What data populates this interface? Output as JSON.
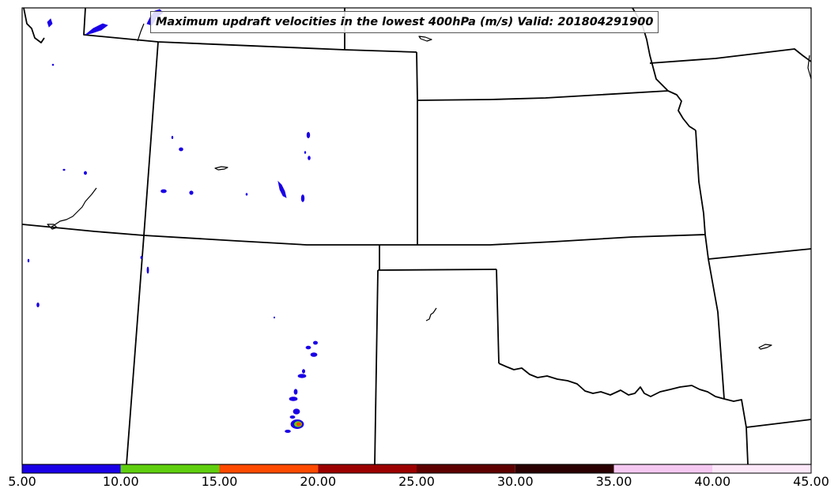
{
  "title": "Maximum updraft velocities in the lowest 400hPa (m/s) Valid: 201804291900",
  "colorbar": {
    "bins": [
      {
        "from": 5,
        "to": 10,
        "color": "#1a00e6"
      },
      {
        "from": 10,
        "to": 15,
        "color": "#5fcf0f"
      },
      {
        "from": 15,
        "to": 20,
        "color": "#ff4a00"
      },
      {
        "from": 20,
        "to": 25,
        "color": "#9c0000"
      },
      {
        "from": 25,
        "to": 30,
        "color": "#5e0000"
      },
      {
        "from": 30,
        "to": 35,
        "color": "#2a0000"
      },
      {
        "from": 35,
        "to": 40,
        "color": "#f5c8f2"
      },
      {
        "from": 40,
        "to": 45,
        "color": "#fde8fa"
      }
    ],
    "tick_labels": [
      "5.00",
      "10.00",
      "15.00",
      "20.00",
      "25.00",
      "30.00",
      "35.00",
      "40.00",
      "45.00"
    ]
  },
  "colors": {
    "boundary": "#000000",
    "cell_5_10": "#1a00e6",
    "cell_10_15": "#5fcf0f",
    "cell_15_20": "#ff4a00"
  }
}
